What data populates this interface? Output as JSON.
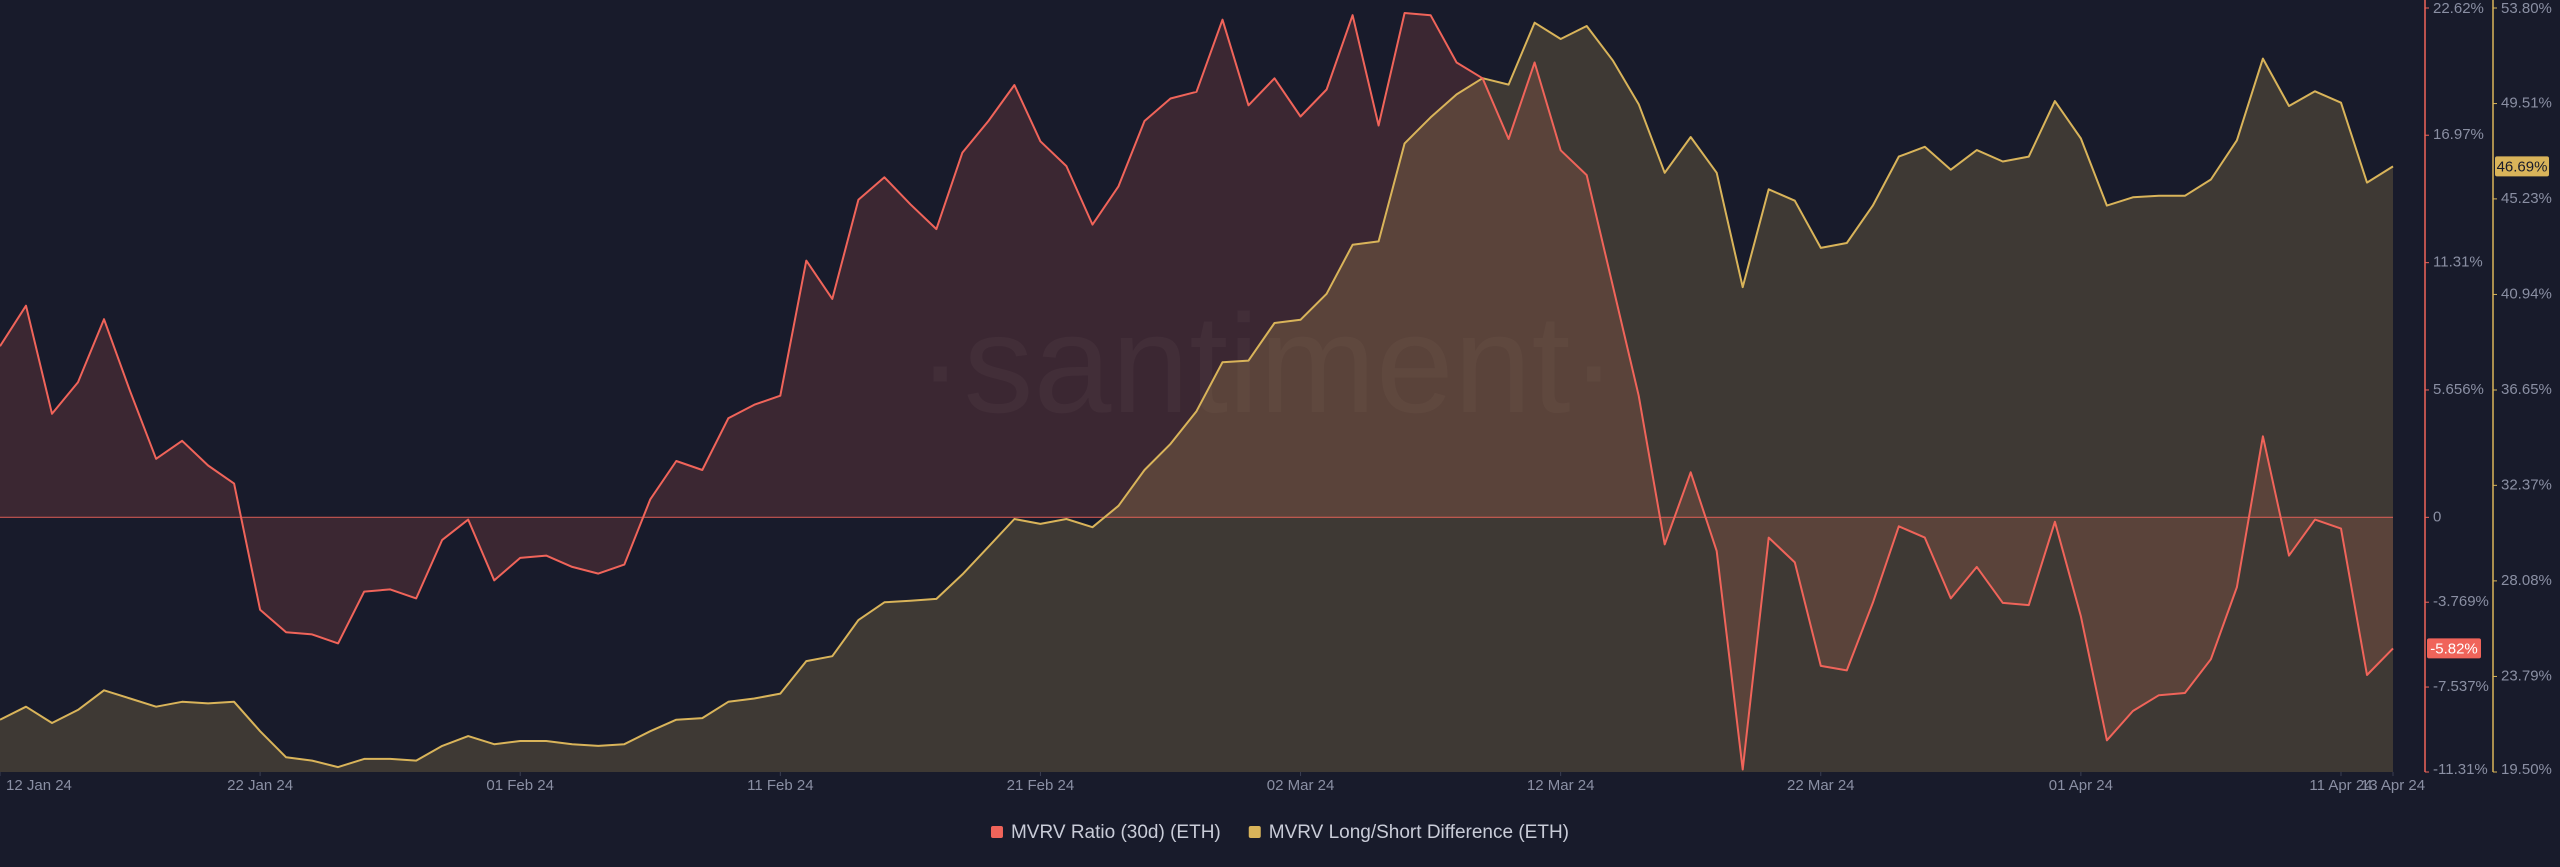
{
  "chart_data": {
    "type": "area-line",
    "watermark": "·santiment·",
    "x": [
      "2024-01-12",
      "2024-01-13",
      "2024-01-14",
      "2024-01-15",
      "2024-01-16",
      "2024-01-17",
      "2024-01-18",
      "2024-01-19",
      "2024-01-20",
      "2024-01-21",
      "2024-01-22",
      "2024-01-23",
      "2024-01-24",
      "2024-01-25",
      "2024-01-26",
      "2024-01-27",
      "2024-01-28",
      "2024-01-29",
      "2024-01-30",
      "2024-01-31",
      "2024-02-01",
      "2024-02-02",
      "2024-02-03",
      "2024-02-04",
      "2024-02-05",
      "2024-02-06",
      "2024-02-07",
      "2024-02-08",
      "2024-02-09",
      "2024-02-10",
      "2024-02-11",
      "2024-02-12",
      "2024-02-13",
      "2024-02-14",
      "2024-02-15",
      "2024-02-16",
      "2024-02-17",
      "2024-02-18",
      "2024-02-19",
      "2024-02-20",
      "2024-02-21",
      "2024-02-22",
      "2024-02-23",
      "2024-02-24",
      "2024-02-25",
      "2024-02-26",
      "2024-02-27",
      "2024-02-28",
      "2024-02-29",
      "2024-03-01",
      "2024-03-02",
      "2024-03-03",
      "2024-03-04",
      "2024-03-05",
      "2024-03-06",
      "2024-03-07",
      "2024-03-08",
      "2024-03-09",
      "2024-03-10",
      "2024-03-11",
      "2024-03-12",
      "2024-03-13",
      "2024-03-14",
      "2024-03-15",
      "2024-03-16",
      "2024-03-17",
      "2024-03-18",
      "2024-03-19",
      "2024-03-20",
      "2024-03-21",
      "2024-03-22",
      "2024-03-23",
      "2024-03-24",
      "2024-03-25",
      "2024-03-26",
      "2024-03-27",
      "2024-03-28",
      "2024-03-29",
      "2024-03-30",
      "2024-03-31",
      "2024-04-01",
      "2024-04-02",
      "2024-04-03",
      "2024-04-04",
      "2024-04-05",
      "2024-04-06",
      "2024-04-07",
      "2024-04-08",
      "2024-04-09",
      "2024-04-10",
      "2024-04-11",
      "2024-04-12",
      "2024-04-13"
    ],
    "xlim": [
      "2024-01-12",
      "2024-04-13"
    ],
    "xticks": [
      {
        "value": "2024-01-12",
        "label": "12 Jan 24"
      },
      {
        "value": "2024-01-22",
        "label": "22 Jan 24"
      },
      {
        "value": "2024-02-01",
        "label": "01 Feb 24"
      },
      {
        "value": "2024-02-11",
        "label": "11 Feb 24"
      },
      {
        "value": "2024-02-21",
        "label": "21 Feb 24"
      },
      {
        "value": "2024-03-02",
        "label": "02 Mar 24"
      },
      {
        "value": "2024-03-12",
        "label": "12 Mar 24"
      },
      {
        "value": "2024-03-22",
        "label": "22 Mar 24"
      },
      {
        "value": "2024-04-01",
        "label": "01 Apr 24"
      },
      {
        "value": "2024-04-11",
        "label": "11 Apr 24"
      },
      {
        "value": "2024-04-13",
        "label": "13 Apr 24"
      }
    ],
    "ylim": [
      -11.31,
      22.62
    ],
    "yticks": [
      {
        "value": 22.62,
        "label": "22.62%"
      },
      {
        "value": 16.97,
        "label": "16.97%"
      },
      {
        "value": 11.31,
        "label": "11.31%"
      },
      {
        "value": 5.656,
        "label": "5.656%"
      },
      0,
      {
        "value": -3.769,
        "label": "-3.769%"
      },
      {
        "value": -7.537,
        "label": "-7.537%"
      },
      {
        "value": -11.31,
        "label": "-11.31%"
      }
    ],
    "y2lim": [
      19.5,
      53.8
    ],
    "y2ticks": [
      {
        "value": 53.8,
        "label": "53.80%"
      },
      {
        "value": 49.51,
        "label": "49.51%"
      },
      {
        "value": 45.23,
        "label": "45.23%"
      },
      {
        "value": 40.94,
        "label": "40.94%"
      },
      {
        "value": 36.65,
        "label": "36.65%"
      },
      {
        "value": 32.37,
        "label": "32.37%"
      },
      {
        "value": 28.08,
        "label": "28.08%"
      },
      {
        "value": 23.79,
        "label": "23.79%"
      },
      {
        "value": 19.5,
        "label": "19.50%"
      }
    ],
    "grid": false,
    "legend": "bottom",
    "series": [
      {
        "name": "MVRV Ratio (30d) (ETH)",
        "color": "#f0645a",
        "axis": "y",
        "fill_to": "zero",
        "current": {
          "value": -5.82,
          "label": "-5.82%"
        },
        "values": [
          7.6,
          9.4,
          4.6,
          6.0,
          8.8,
          5.6,
          2.6,
          3.4,
          2.3,
          1.5,
          -4.1,
          -5.1,
          -5.2,
          -5.6,
          -3.3,
          -3.2,
          -3.6,
          -1.0,
          -0.1,
          -2.8,
          -1.8,
          -1.7,
          -2.2,
          -2.5,
          -2.1,
          0.8,
          2.5,
          2.1,
          4.4,
          5.0,
          5.4,
          11.4,
          9.7,
          14.1,
          15.1,
          13.9,
          12.8,
          16.2,
          17.6,
          19.2,
          16.7,
          15.6,
          13.0,
          14.7,
          17.6,
          18.6,
          18.9,
          22.1,
          18.3,
          19.5,
          17.8,
          19.0,
          22.3,
          17.4,
          22.4,
          22.3,
          20.2,
          19.5,
          16.8,
          20.2,
          16.3,
          15.2,
          10.3,
          5.4,
          -1.2,
          2.0,
          -1.5,
          -11.2,
          -0.9,
          -2.0,
          -6.6,
          -6.8,
          -3.8,
          -0.4,
          -0.9,
          -3.6,
          -2.2,
          -3.8,
          -3.9,
          -0.2,
          -4.4,
          -9.9,
          -8.6,
          -7.9,
          -7.8,
          -6.3,
          -3.1,
          3.6,
          -1.7,
          -0.1,
          -0.5,
          -7.0,
          -5.82
        ]
      },
      {
        "name": "MVRV Long/Short Difference (ETH)",
        "color": "#d9b45a",
        "axis": "y2",
        "fill_to": "bottom",
        "current": {
          "value": 46.69,
          "label": "46.69%"
        },
        "values": [
          21.85,
          22.43,
          21.7,
          22.29,
          23.17,
          22.8,
          22.43,
          22.65,
          22.58,
          22.65,
          21.33,
          20.16,
          20.01,
          19.72,
          20.09,
          20.09,
          20.01,
          20.67,
          21.11,
          20.75,
          20.89,
          20.89,
          20.75,
          20.67,
          20.75,
          21.33,
          21.85,
          21.92,
          22.65,
          22.8,
          23.02,
          24.48,
          24.7,
          26.32,
          27.12,
          27.19,
          27.27,
          28.37,
          29.61,
          30.86,
          30.64,
          30.86,
          30.49,
          31.45,
          33.06,
          34.23,
          35.7,
          37.9,
          37.97,
          39.66,
          39.8,
          40.97,
          43.17,
          43.32,
          47.72,
          48.89,
          49.92,
          50.65,
          50.36,
          53.14,
          52.41,
          52.99,
          51.45,
          49.48,
          46.4,
          48.01,
          46.4,
          41.27,
          45.66,
          45.15,
          43.03,
          43.25,
          44.93,
          47.13,
          47.57,
          46.54,
          47.42,
          46.91,
          47.13,
          49.62,
          47.94,
          44.93,
          45.3,
          45.37,
          45.37,
          46.1,
          47.86,
          51.53,
          49.4,
          50.06,
          49.55,
          45.96,
          46.69
        ]
      }
    ]
  }
}
